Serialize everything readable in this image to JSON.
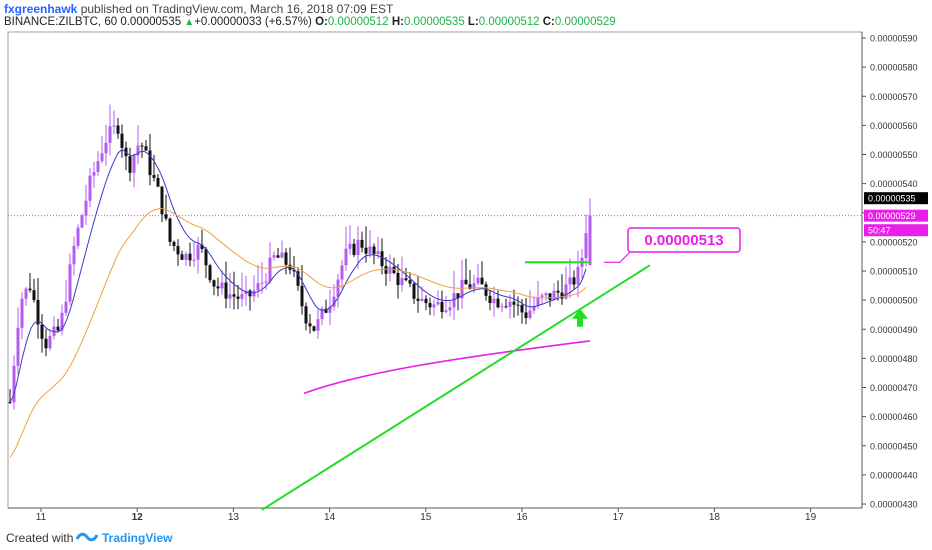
{
  "header": {
    "author": "fxgreenhawk",
    "published_text": "published on TradingView.com, March 16, 2018 07:09 EST",
    "symbol": "BINANCE:ZILBTC, 60",
    "price": "0.00000535",
    "change": "+0.00000033 (+6.57%)",
    "o_label": "O:",
    "o_value": "0.00000512",
    "h_label": "H:",
    "h_value": "0.00000535",
    "l_label": "L:",
    "l_value": "0.00000512",
    "c_label": "C:",
    "c_value": "0.00000529"
  },
  "chart_data": {
    "type": "candlestick",
    "x_ticks": [
      "11",
      "12",
      "13",
      "14",
      "15",
      "16",
      "17",
      "18",
      "19"
    ],
    "y_ticks": [
      "0.00000590",
      "0.00000580",
      "0.00000570",
      "0.00000560",
      "0.00000550",
      "0.00000540",
      "0.00000530",
      "0.00000520",
      "0.00000510",
      "0.00000500",
      "0.00000490",
      "0.00000480",
      "0.00000470",
      "0.00000460",
      "0.00000450",
      "0.00000440",
      "0.00000430"
    ],
    "ylim": [
      4.28e-06,
      5.92e-06
    ],
    "price_tags": [
      {
        "text": "0.00000535",
        "value": 5.35e-06,
        "bg": "#000000",
        "fg": "#ffffff"
      },
      {
        "text": "0.00000529",
        "value": 5.29e-06,
        "bg": "#e91ee9",
        "fg": "#ffffff"
      },
      {
        "text": "50:47",
        "value": 5.24e-06,
        "bg": "#e91ee9",
        "fg": "#ffffff"
      }
    ],
    "annotation": {
      "text": "0.00000513",
      "value": 5.13e-06,
      "color": "#e91ee9"
    },
    "colors": {
      "up": "#b45cf0",
      "down": "#111111",
      "ema_fast": "#3a3ac8",
      "ema_slow": "#f0a040",
      "ma_long": "#e91ee9",
      "trend": "#22dd22"
    }
  },
  "footer": {
    "created_with": "Created with",
    "brand": "TradingView"
  }
}
